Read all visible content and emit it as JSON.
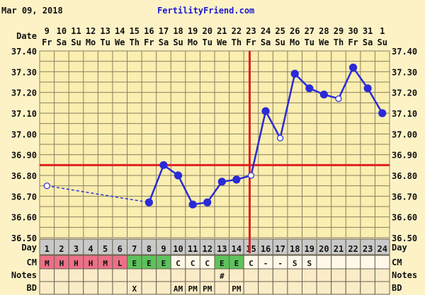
{
  "header": {
    "date": "Mar 09, 2018",
    "site": "FertilityFriend.com"
  },
  "row_labels": {
    "date": "Date",
    "day": "Day",
    "cm": "CM",
    "notes": "Notes",
    "bd": "BD"
  },
  "colors": {
    "line": "#2a2ad8",
    "coverline": "#e02020",
    "ovulation": "#e02020",
    "cm_period": "#ec7088",
    "cm_egg": "#5cc35c",
    "day_row": "#c9c9c9",
    "plot_bg": "#faeeb0",
    "grid": "#8a8060"
  },
  "chart_data": {
    "type": "line",
    "ylim": [
      36.5,
      37.4
    ],
    "yticks": [
      "37.40",
      "37.30",
      "37.20",
      "37.10",
      "37.00",
      "36.90",
      "36.80",
      "36.70",
      "36.60",
      "36.50"
    ],
    "dates": [
      "9",
      "10",
      "11",
      "12",
      "13",
      "14",
      "15",
      "16",
      "17",
      "18",
      "19",
      "20",
      "21",
      "22",
      "23",
      "24",
      "25",
      "26",
      "27",
      "28",
      "29",
      "30",
      "31",
      "1"
    ],
    "weekdays": [
      "Fr",
      "Sa",
      "Su",
      "Mo",
      "Tu",
      "We",
      "Th",
      "Fr",
      "Sa",
      "Su",
      "Mo",
      "Tu",
      "We",
      "Th",
      "Fr",
      "Sa",
      "Su",
      "Mo",
      "Tu",
      "We",
      "Th",
      "Fr",
      "Sa",
      "Su"
    ],
    "days": [
      1,
      2,
      3,
      4,
      5,
      6,
      7,
      8,
      9,
      10,
      11,
      12,
      13,
      14,
      15,
      16,
      17,
      18,
      19,
      20,
      21,
      22,
      23,
      24
    ],
    "temps": [
      36.75,
      null,
      null,
      null,
      null,
      null,
      null,
      36.67,
      36.85,
      36.8,
      36.66,
      36.67,
      36.77,
      36.78,
      36.8,
      37.11,
      36.98,
      37.29,
      37.22,
      37.19,
      37.17,
      37.32,
      37.22,
      37.1
    ],
    "open_points": [
      1,
      15,
      17,
      21
    ],
    "dashed_gap": [
      1,
      8
    ],
    "coverline": 36.85,
    "ovulation_day": 15,
    "grid": true
  },
  "cm": [
    "M",
    "H",
    "H",
    "H",
    "M",
    "L",
    "E",
    "E",
    "E",
    "C",
    "C",
    "C",
    "E",
    "E",
    "C",
    "-",
    "-",
    "S",
    "S",
    "",
    "",
    "",
    "",
    ""
  ],
  "cm_types": [
    "period",
    "period",
    "period",
    "period",
    "period",
    "period",
    "egg",
    "egg",
    "egg",
    "",
    "",
    "",
    "egg",
    "egg",
    "",
    "",
    "",
    "",
    "",
    "",
    "",
    "",
    "",
    ""
  ],
  "notes": [
    "",
    "",
    "",
    "",
    "",
    "",
    "",
    "",
    "",
    "",
    "",
    "",
    "#",
    "",
    "",
    "",
    "",
    "",
    "",
    "",
    "",
    "",
    "",
    ""
  ],
  "bd": [
    "",
    "",
    "",
    "",
    "",
    "",
    "X",
    "",
    "",
    "AM",
    "PM",
    "PM",
    "",
    "PM",
    "",
    "",
    "",
    "",
    "",
    "",
    "",
    "",
    "",
    ""
  ]
}
